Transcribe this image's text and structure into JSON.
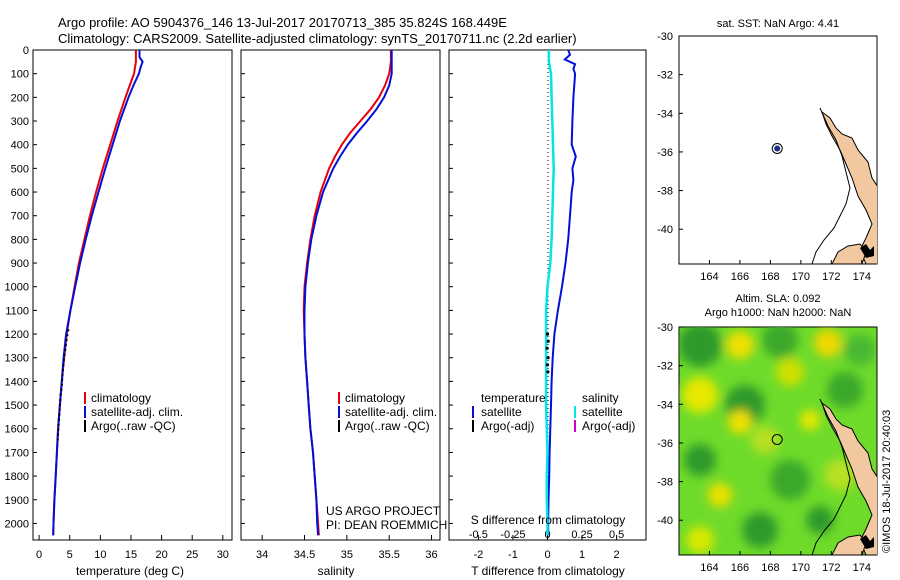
{
  "header": {
    "line1": "Argo profile: AO 5904376_146 13-Jul-2017 20170713_385 35.824S 168.449E",
    "line2": "Climatology: CARS2009. Satellite-adjusted climatology: synTS_20170711.nc (2.2d earlier)"
  },
  "colors": {
    "climatology": "#e8000b",
    "satellite": "#0010d8",
    "argo": "#000000",
    "sat_salinity": "#00e5e5",
    "argo_adj_salinity": "#d000d0",
    "land": "#f2c8a0",
    "marker": "#1a2a8a"
  },
  "credits": {
    "project": "US ARGO PROJECT",
    "pi": "PI: DEAN ROEMMICH",
    "stamp": "©IMOS 18-Jul-2017 20:40:03"
  },
  "chart_data": [
    {
      "type": "line",
      "name": "temperature",
      "xlabel": "temperature (deg C)",
      "xlim": [
        -1,
        31.5
      ],
      "xticks": [
        0,
        5,
        10,
        15,
        20,
        25,
        30
      ],
      "ylim": [
        0,
        2070
      ],
      "yticks": [
        0,
        100,
        200,
        300,
        400,
        500,
        600,
        700,
        800,
        900,
        1000,
        1100,
        1200,
        1300,
        1400,
        1500,
        1600,
        1700,
        1800,
        1900,
        2000
      ],
      "ylabel_reversed": true,
      "series": [
        {
          "name": "climatology",
          "depth": [
            0,
            50,
            100,
            150,
            200,
            300,
            400,
            500,
            600,
            700,
            800,
            900,
            1000,
            1100,
            1200,
            1300,
            1400,
            1500,
            1600,
            1700,
            1800,
            1900,
            2000,
            2050
          ],
          "values": [
            15.8,
            15.8,
            15.5,
            14.8,
            14.1,
            12.8,
            11.6,
            10.4,
            9.3,
            8.3,
            7.4,
            6.5,
            5.8,
            5.1,
            4.5,
            4.1,
            3.7,
            3.4,
            3.1,
            2.9,
            2.7,
            2.5,
            2.35,
            2.3
          ]
        },
        {
          "name": "satellite-adj. clim.",
          "depth": [
            0,
            30,
            50,
            70,
            100,
            150,
            200,
            300,
            400,
            500,
            600,
            700,
            800,
            900,
            1000,
            1100,
            1200,
            1300,
            1400,
            1500,
            1600,
            1700,
            1800,
            1900,
            2000,
            2050
          ],
          "values": [
            16.4,
            16.4,
            16.9,
            16.6,
            16.3,
            15.4,
            14.6,
            13.2,
            12.0,
            10.8,
            9.7,
            8.6,
            7.6,
            6.7,
            5.9,
            5.1,
            4.4,
            4.0,
            3.7,
            3.4,
            3.1,
            2.9,
            2.7,
            2.5,
            2.35,
            2.3
          ]
        },
        {
          "name": "Argo(..raw -QC)",
          "depth": [
            1180,
            1220,
            1260,
            1300,
            1340,
            1380,
            1420,
            1460,
            1500,
            1540,
            1580,
            1620,
            1660
          ],
          "values": [
            4.8,
            4.5,
            4.3,
            4.1,
            3.9,
            3.8,
            3.7,
            3.5,
            3.4,
            3.3,
            3.2,
            3.1,
            3.0
          ]
        }
      ],
      "legend": [
        "climatology",
        "satellite-adj. clim.",
        "Argo(..raw -QC)"
      ]
    },
    {
      "type": "line",
      "name": "salinity",
      "xlabel": "salinity",
      "xlim": [
        33.75,
        36.1
      ],
      "xticks": [
        34,
        34.5,
        35,
        35.5,
        36
      ],
      "ylim": [
        0,
        2070
      ],
      "series": [
        {
          "name": "climatology",
          "depth": [
            0,
            50,
            100,
            150,
            200,
            250,
            300,
            350,
            400,
            450,
            500,
            600,
            700,
            800,
            900,
            1000,
            1100,
            1200,
            1300,
            1400,
            1500,
            1600,
            1700,
            1800,
            1900,
            2000,
            2050
          ],
          "values": [
            35.52,
            35.52,
            35.5,
            35.45,
            35.38,
            35.28,
            35.16,
            35.04,
            34.94,
            34.86,
            34.79,
            34.69,
            34.62,
            34.57,
            34.53,
            34.5,
            34.49,
            34.5,
            34.51,
            34.53,
            34.55,
            34.57,
            34.6,
            34.62,
            34.64,
            34.66,
            34.67
          ]
        },
        {
          "name": "satellite-adj. clim.",
          "depth": [
            0,
            50,
            100,
            150,
            200,
            250,
            300,
            350,
            400,
            450,
            500,
            600,
            700,
            800,
            900,
            1000,
            1100,
            1200,
            1300,
            1400,
            1500,
            1600,
            1700,
            1800,
            1900,
            2000,
            2050
          ],
          "values": [
            35.53,
            35.53,
            35.53,
            35.5,
            35.44,
            35.35,
            35.24,
            35.12,
            35.01,
            34.92,
            34.84,
            34.72,
            34.64,
            34.58,
            34.54,
            34.51,
            34.5,
            34.5,
            34.51,
            34.53,
            34.55,
            34.57,
            34.6,
            34.62,
            34.64,
            34.65,
            34.66
          ]
        }
      ],
      "legend": [
        "climatology",
        "satellite-adj. clim.",
        "Argo(..raw -QC)"
      ]
    },
    {
      "type": "line",
      "name": "difference from climatology",
      "xlabel": "T difference from climatology",
      "xlim": [
        -2.85,
        2.85
      ],
      "xticks": [
        -2,
        -1,
        0,
        1,
        2
      ],
      "xlabel_top": "S difference from climatology",
      "xticks_top": [
        -0.5,
        -0.25,
        0,
        0.25,
        0.5
      ],
      "ylim": [
        0,
        2070
      ],
      "series": [
        {
          "name": "temperature satellite",
          "depth": [
            0,
            20,
            40,
            60,
            80,
            100,
            200,
            300,
            400,
            450,
            500,
            550,
            600,
            700,
            800,
            900,
            1000,
            1100,
            1200,
            1300,
            1400,
            1500,
            1600,
            1700,
            1800,
            1900,
            2000,
            2050
          ],
          "values": [
            0.6,
            0.65,
            0.5,
            0.8,
            0.75,
            0.8,
            0.75,
            0.72,
            0.7,
            0.82,
            0.72,
            0.75,
            0.7,
            0.65,
            0.6,
            0.52,
            0.42,
            0.3,
            0.2,
            0.15,
            0.12,
            0.1,
            0.08,
            0.06,
            0.05,
            0.03,
            0.02,
            0.02
          ]
        },
        {
          "name": "salinity satellite",
          "depth": [
            0,
            50,
            100,
            200,
            300,
            400,
            500,
            600,
            700,
            800,
            900,
            1000,
            1100,
            1200,
            1300,
            1400,
            1500,
            1600,
            1700,
            1800,
            1900,
            2000,
            2050
          ],
          "values": [
            0.01,
            0.01,
            0.025,
            0.03,
            0.035,
            0.04,
            0.045,
            0.04,
            0.035,
            0.03,
            0.02,
            0.0,
            -0.01,
            -0.01,
            -0.01,
            -0.01,
            -0.01,
            -0.005,
            0.0,
            -0.005,
            -0.005,
            0.0,
            0.0
          ]
        },
        {
          "name": "Argo(-adj) salinity",
          "depth": [
            1200,
            1230,
            1260,
            1300,
            1330,
            1360
          ],
          "values": [
            0.0,
            0.005,
            -0.002,
            0.004,
            0.0,
            0.003
          ]
        }
      ],
      "legend": {
        "temperature_header": "temperature",
        "salinity_header": "salinity",
        "items": [
          "satellite",
          "Argo(-adj)",
          "satellite",
          "Argo(-adj)"
        ]
      }
    },
    {
      "type": "map",
      "name": "SST",
      "title": "sat. SST: NaN Argo: 4.41",
      "lon_range": [
        162,
        175
      ],
      "lat_range": [
        -41.8,
        -30
      ],
      "xticks": [
        164,
        166,
        168,
        170,
        172,
        174
      ],
      "yticks": [
        -30,
        -32,
        -34,
        -36,
        -38,
        -40
      ],
      "argo_position": {
        "lon": 168.449,
        "lat": -35.824
      }
    },
    {
      "type": "map",
      "name": "SLA",
      "title1": "Altim. SLA: 0.092",
      "title2": "Argo h1000: NaN h2000: NaN",
      "lon_range": [
        162,
        175
      ],
      "lat_range": [
        -41.8,
        -30
      ],
      "xticks": [
        164,
        166,
        168,
        170,
        172,
        174
      ],
      "yticks": [
        -30,
        -32,
        -34,
        -36,
        -38,
        -40
      ],
      "argo_position": {
        "lon": 168.449,
        "lat": -35.824
      }
    }
  ]
}
